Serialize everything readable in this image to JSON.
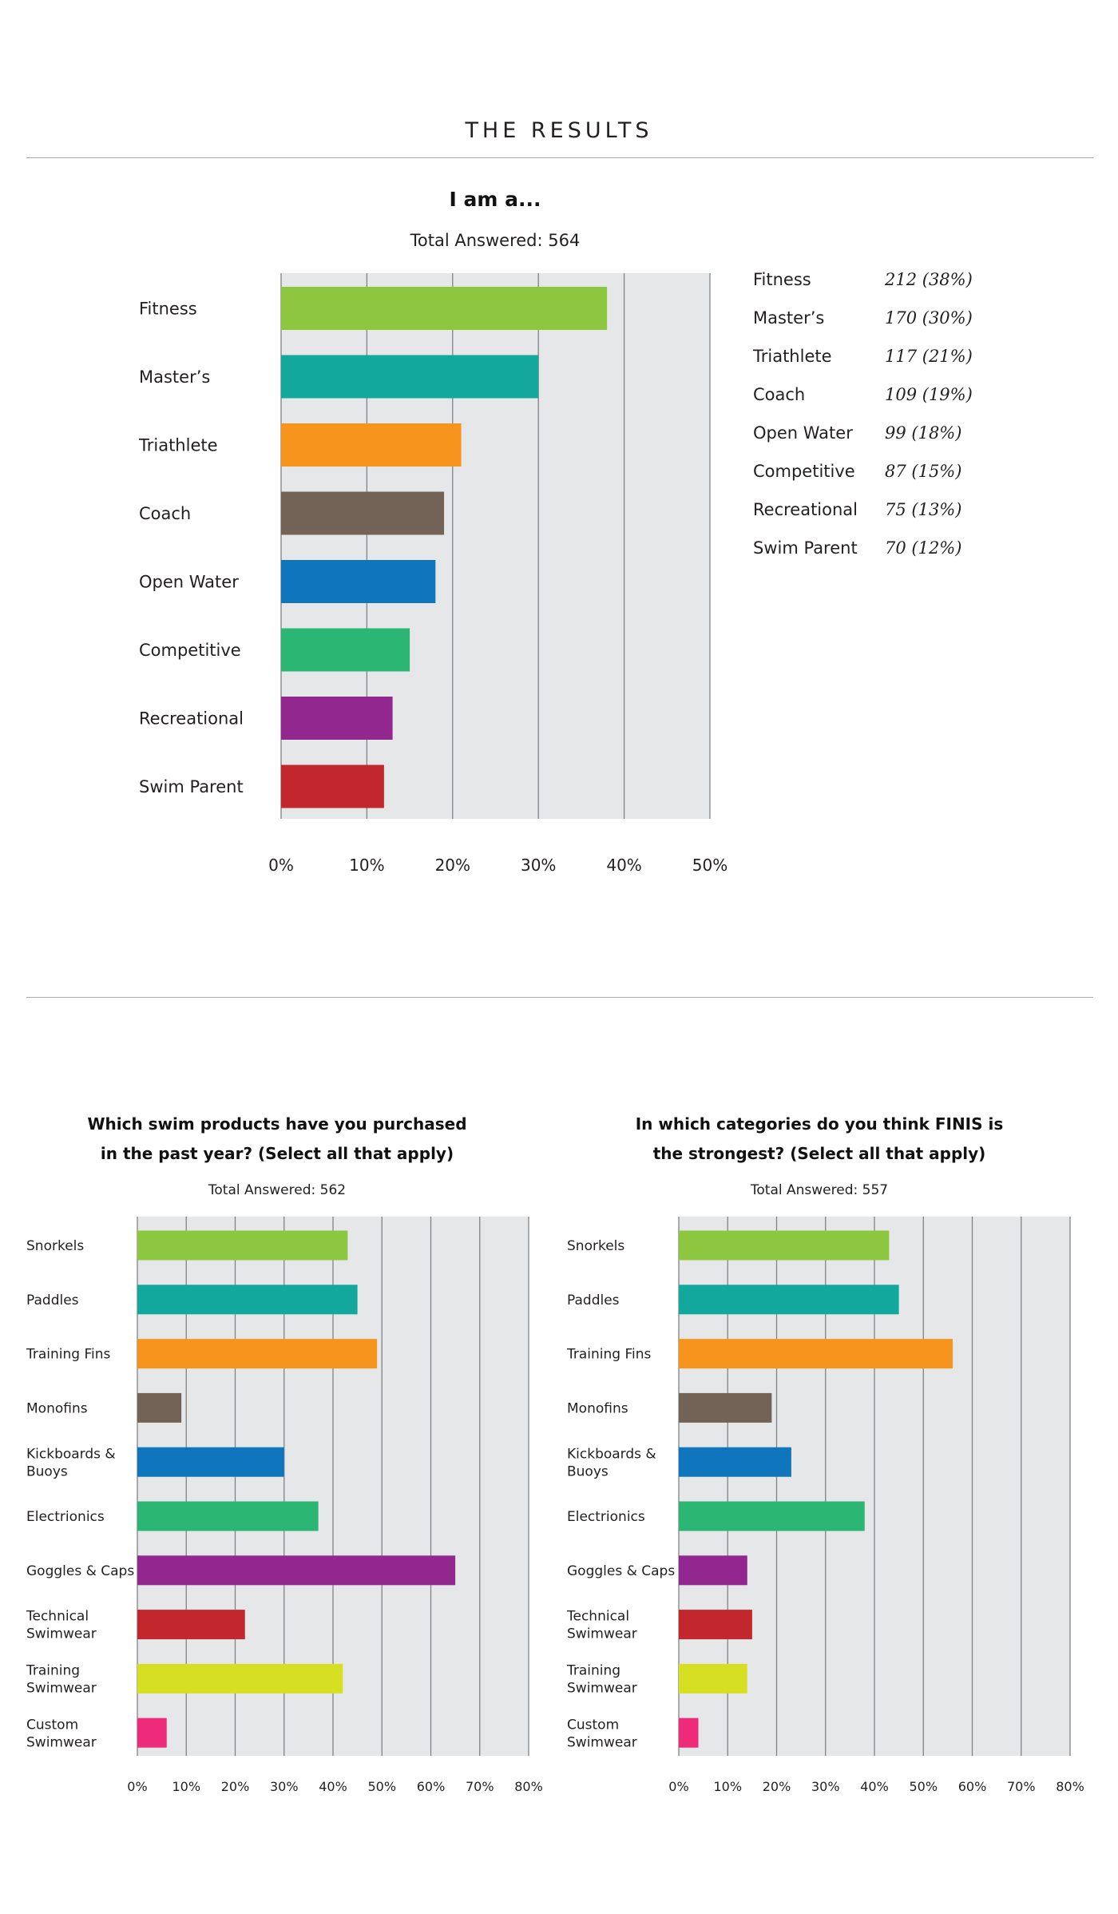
{
  "page": {
    "header": "THE RESULTS"
  },
  "chart_data": [
    {
      "type": "bar",
      "orientation": "horizontal",
      "title": "I am a...",
      "subtitle": "Total Answered: 564",
      "categories": [
        "Fitness",
        "Master’s",
        "Triathlete",
        "Coach",
        "Open Water",
        "Competitive",
        "Recreational",
        "Swim Parent"
      ],
      "values": [
        38,
        30,
        21,
        19,
        18,
        15,
        13,
        12
      ],
      "counts": [
        "212 (38%)",
        "170 (30%)",
        "117 (21%)",
        "109 (19%)",
        "99 (18%)",
        "87 (15%)",
        "75 (13%)",
        "70 (12%)"
      ],
      "colors": [
        "#8dc63f",
        "#13a89e",
        "#f7941d",
        "#736357",
        "#0f75bc",
        "#2bb673",
        "#92278f",
        "#c1272d"
      ],
      "xlim": [
        0,
        50
      ],
      "xticks": [
        "0%",
        "10%",
        "20%",
        "30%",
        "40%",
        "50%"
      ],
      "grid": true,
      "legend": "right"
    },
    {
      "type": "bar",
      "orientation": "horizontal",
      "title": [
        "Which swim products have you purchased",
        "in the past year? (Select all that apply)"
      ],
      "subtitle": "Total Answered: 562",
      "categories": [
        [
          "Snorkels"
        ],
        [
          "Paddles"
        ],
        [
          "Training Fins"
        ],
        [
          "Monofins"
        ],
        [
          "Kickboards &",
          "Buoys"
        ],
        [
          "Electrionics"
        ],
        [
          "Goggles & Caps"
        ],
        [
          "Technical",
          "Swimwear"
        ],
        [
          "Training",
          "Swimwear"
        ],
        [
          "Custom",
          "Swimwear"
        ]
      ],
      "values": [
        43,
        45,
        49,
        9,
        30,
        37,
        65,
        22,
        42,
        6
      ],
      "colors": [
        "#8dc63f",
        "#13a89e",
        "#f7941d",
        "#736357",
        "#0f75bc",
        "#2bb673",
        "#92278f",
        "#c1272d",
        "#d7df23",
        "#ee2a7b"
      ],
      "xlim": [
        0,
        80
      ],
      "xticks": [
        "0%",
        "10%",
        "20%",
        "30%",
        "40%",
        "50%",
        "60%",
        "70%",
        "80%"
      ],
      "grid": true
    },
    {
      "type": "bar",
      "orientation": "horizontal",
      "title": [
        "In which categories do you think FINIS is",
        "the strongest? (Select all that apply)"
      ],
      "subtitle": "Total Answered: 557",
      "categories": [
        [
          "Snorkels"
        ],
        [
          "Paddles"
        ],
        [
          "Training Fins"
        ],
        [
          "Monofins"
        ],
        [
          "Kickboards &",
          "Buoys"
        ],
        [
          "Electrionics"
        ],
        [
          "Goggles & Caps"
        ],
        [
          "Technical",
          "Swimwear"
        ],
        [
          "Training",
          "Swimwear"
        ],
        [
          "Custom",
          "Swimwear"
        ]
      ],
      "values": [
        43,
        45,
        56,
        19,
        23,
        38,
        14,
        15,
        14,
        4
      ],
      "colors": [
        "#8dc63f",
        "#13a89e",
        "#f7941d",
        "#736357",
        "#0f75bc",
        "#2bb673",
        "#92278f",
        "#c1272d",
        "#d7df23",
        "#ee2a7b"
      ],
      "xlim": [
        0,
        80
      ],
      "xticks": [
        "0%",
        "10%",
        "20%",
        "30%",
        "40%",
        "50%",
        "60%",
        "70%",
        "80%"
      ],
      "grid": true
    }
  ]
}
